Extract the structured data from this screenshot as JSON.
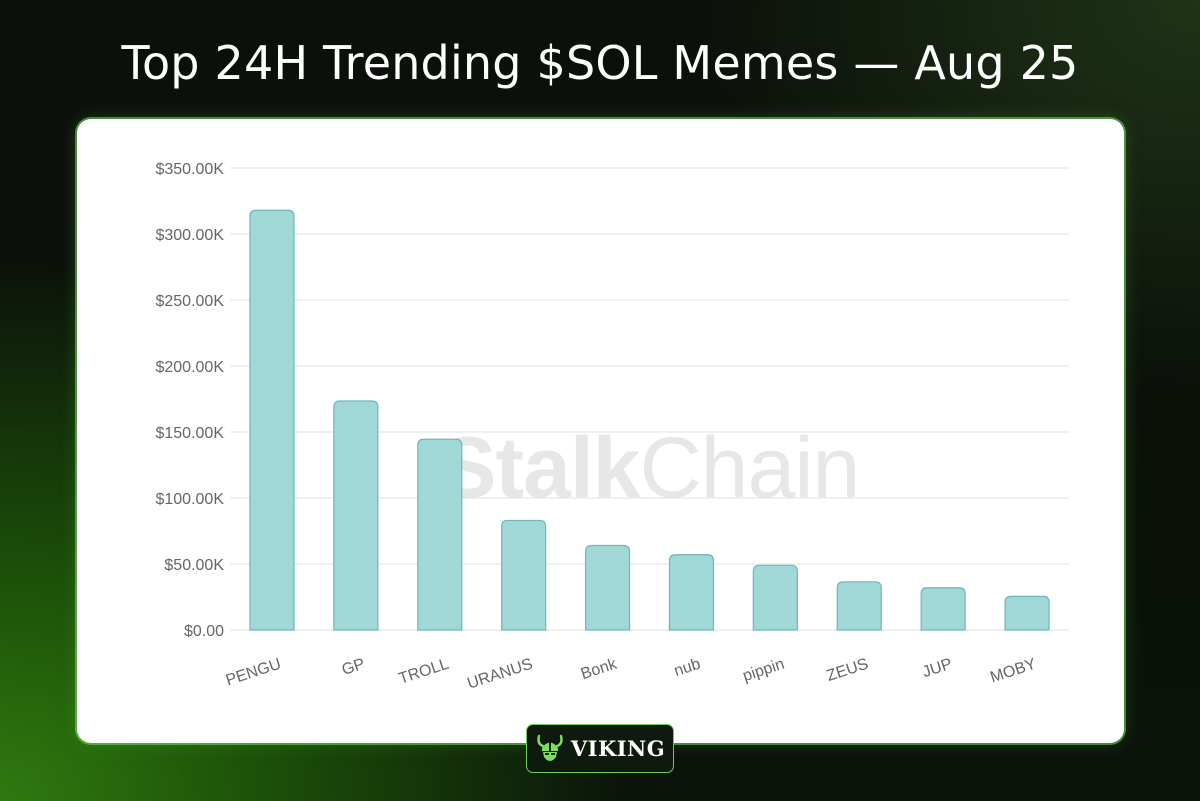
{
  "title": "Top 24H Trending $SOL Memes — Aug 25",
  "watermark": {
    "bold": "Stalk",
    "light": "Chain"
  },
  "badge": {
    "text": "VIKING",
    "icon": "viking-helmet-icon"
  },
  "colors": {
    "bar_fill": "#a0d7d7",
    "bar_stroke": "#6fb7b9",
    "grid": "#e1e1e1",
    "tick_text": "#666666",
    "accent_green": "#6fcf55"
  },
  "chart_data": {
    "type": "bar",
    "title": "",
    "xlabel": "",
    "ylabel": "",
    "categories": [
      "PENGU",
      "GP",
      "TROLL",
      "URANUS",
      "Bonk",
      "nub",
      "pippin",
      "ZEUS",
      "JUP",
      "MOBY"
    ],
    "values": [
      318000,
      173500,
      144500,
      83000,
      64000,
      57000,
      49000,
      36500,
      32000,
      25500
    ],
    "ylim": [
      0,
      350000
    ],
    "yticks": [
      0,
      50000,
      100000,
      150000,
      200000,
      250000,
      300000,
      350000
    ],
    "ytick_labels": [
      "$0.00",
      "$50.00K",
      "$100.00K",
      "$150.00K",
      "$200.00K",
      "$250.00K",
      "$300.00K",
      "$350.00K"
    ],
    "grid": true,
    "legend": "none"
  }
}
